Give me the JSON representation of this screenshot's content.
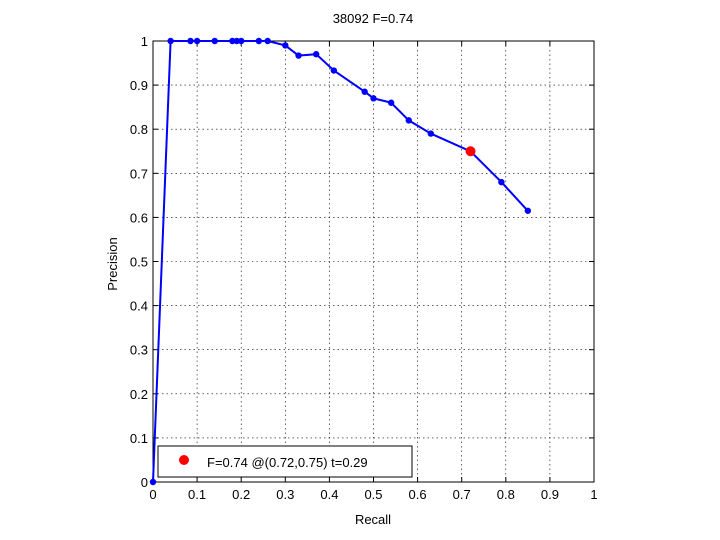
{
  "chart_data": {
    "type": "line",
    "title": "38092 F=0.74",
    "xlabel": "Recall",
    "ylabel": "Precision",
    "xlim": [
      0,
      1
    ],
    "ylim": [
      0,
      1
    ],
    "xticks": [
      "0",
      "0.1",
      "0.2",
      "0.3",
      "0.4",
      "0.5",
      "0.6",
      "0.7",
      "0.8",
      "0.9",
      "1"
    ],
    "yticks": [
      "0",
      "0.1",
      "0.2",
      "0.3",
      "0.4",
      "0.5",
      "0.6",
      "0.7",
      "0.8",
      "0.9",
      "1"
    ],
    "grid": true,
    "legend_placement": "bottom-left",
    "series": [
      {
        "color": "#0000ff",
        "x": [
          0.85,
          0.79,
          0.72,
          0.63,
          0.58,
          0.54,
          0.5,
          0.48,
          0.41,
          0.37,
          0.33,
          0.3,
          0.26,
          0.24,
          0.2,
          0.19,
          0.18,
          0.14,
          0.1,
          0.085,
          0.04,
          0.0
        ],
        "y": [
          0.615,
          0.68,
          0.75,
          0.79,
          0.82,
          0.86,
          0.87,
          0.885,
          0.933,
          0.97,
          0.967,
          0.99,
          1.0,
          1.0,
          1.0,
          1.0,
          1.0,
          1.0,
          1.0,
          1.0,
          1.0,
          0.0
        ]
      }
    ],
    "best_point": {
      "x": 0.72,
      "y": 0.75,
      "color": "#ff0000",
      "label": "F=0.74 @(0.72,0.75) t=0.29"
    }
  }
}
